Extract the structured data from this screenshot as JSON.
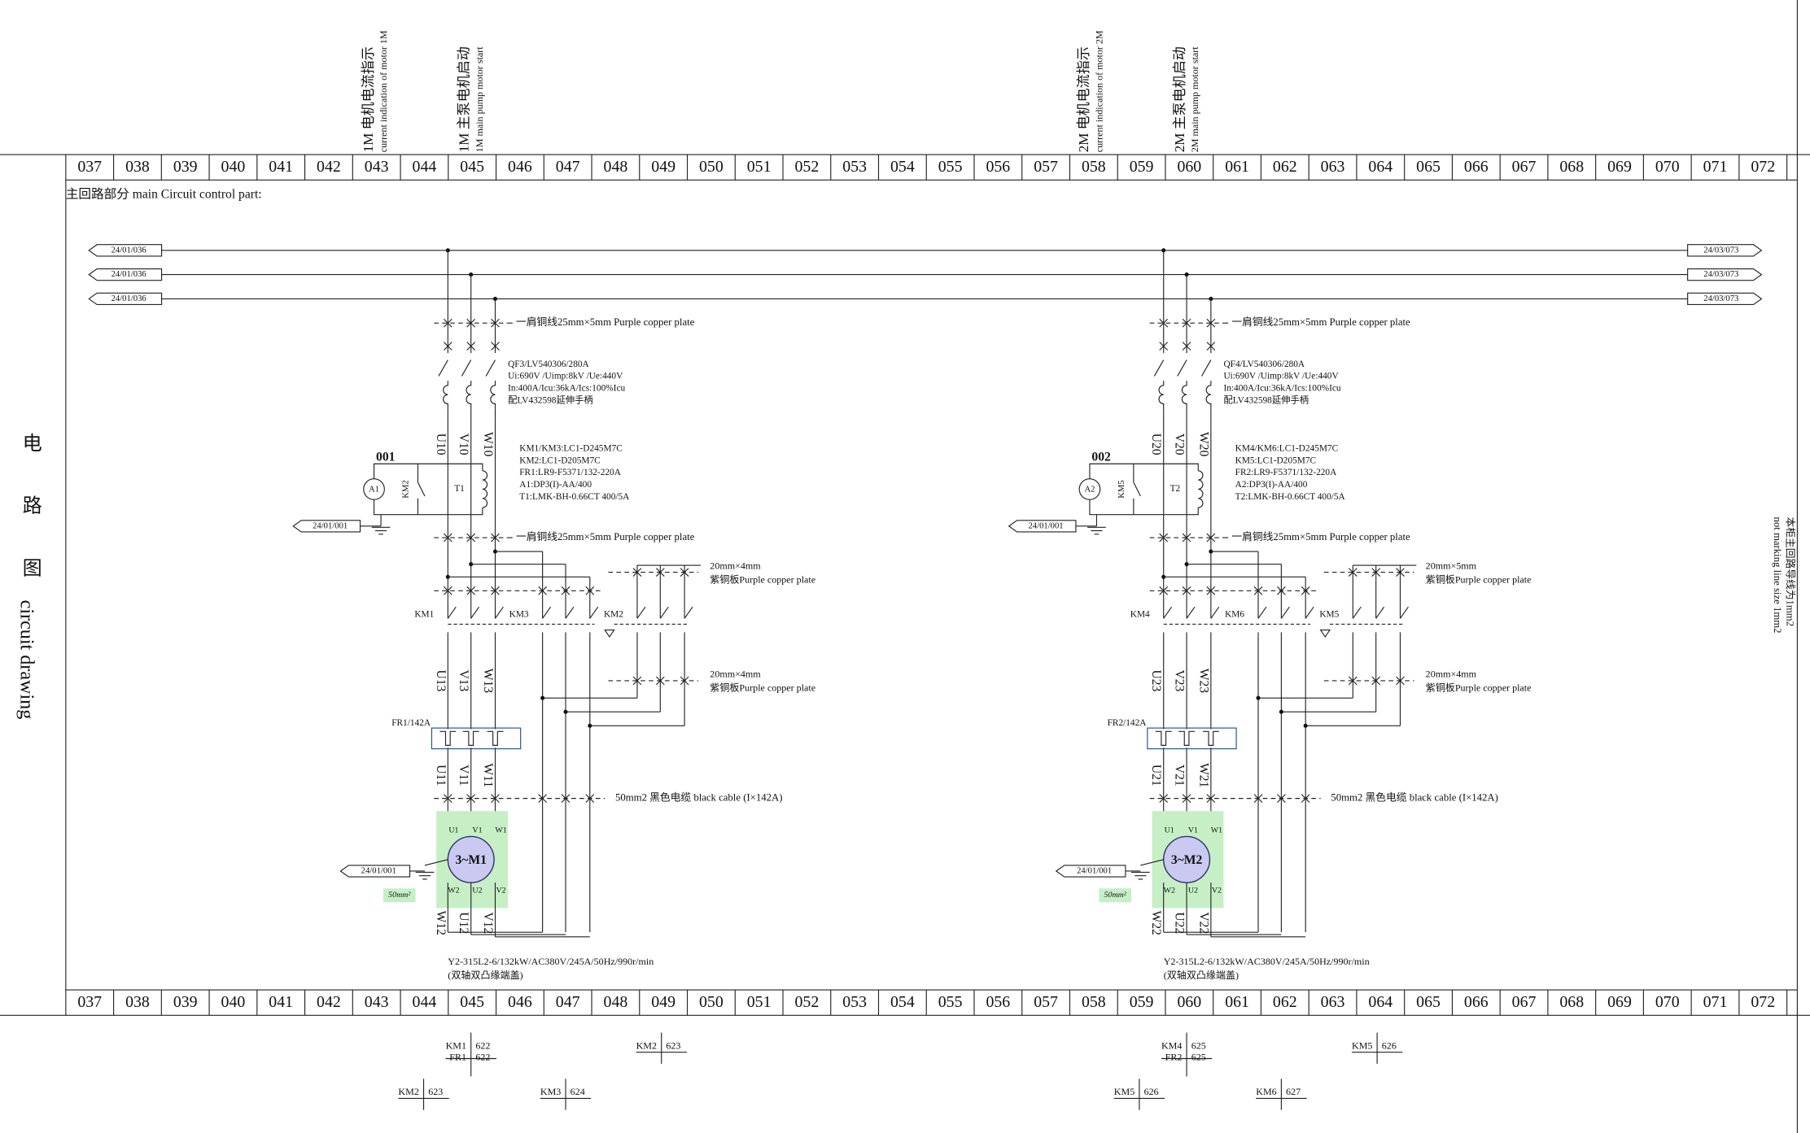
{
  "header": {
    "columns": [
      "037",
      "038",
      "039",
      "040",
      "041",
      "042",
      "043",
      "044",
      "045",
      "046",
      "047",
      "048",
      "049",
      "050",
      "051",
      "052",
      "053",
      "054",
      "055",
      "056",
      "057",
      "058",
      "059",
      "060",
      "061",
      "062",
      "063",
      "064",
      "065",
      "066",
      "067",
      "068",
      "069",
      "070",
      "071",
      "072"
    ]
  },
  "section_title": "主回路部分 main Circuit control part:",
  "side_label": {
    "cn": [
      "电",
      "路",
      "图"
    ],
    "en": "circuit drawing"
  },
  "side_note": [
    "本柜主回路导线为1mm2",
    "not marking line size 1mm2"
  ],
  "bus_refs": {
    "left": [
      "24/01/036",
      "24/01/036",
      "24/01/036"
    ],
    "right": [
      "24/03/073",
      "24/03/073",
      "24/03/073"
    ]
  },
  "circuits": [
    {
      "current_title": {
        "cn": "1M 电机电流指示",
        "en": "current indication of motor 1M"
      },
      "start_title": {
        "cn": "1M 主泵电机启动",
        "en": "1M main pump motor start"
      },
      "copper_top": "一肩铜线25mm×5mm Purple copper plate",
      "breaker": [
        "QF3/LV540306/280A",
        "Ui:690V /Uimp:8kV /Ue:440V",
        "In:400A/Icu:36kA/Ics:100%Icu",
        "配LV432598延伸手柄"
      ],
      "wires_in": [
        "U10",
        "V10",
        "W10"
      ],
      "meter": {
        "id": "001",
        "ammeter": "A1",
        "contact": "KM2",
        "ct": "T1",
        "ref": "24/01/001"
      },
      "notes": [
        "KM1/KM3:LC1-D245M7C",
        "KM2:LC1-D205M7C",
        "FR1:LR9-F5371/132-220A",
        "A1:DP3(I)-AA/400",
        "T1:LMK-BH-0.66CT  400/5A"
      ],
      "copper_mid": "一肩铜线25mm×5mm Purple copper plate",
      "plate_upper": [
        "20mm×4mm",
        "紫铜板Purple copper plate"
      ],
      "plate_lower": [
        "20mm×4mm",
        "紫铜板Purple copper plate"
      ],
      "contactors": [
        "KM1",
        "KM3",
        "KM2"
      ],
      "wires_mid": [
        "U13",
        "V13",
        "W13"
      ],
      "overload": "FR1/142A",
      "wires_out": [
        "U11",
        "V11",
        "W11"
      ],
      "cable": "50mm2 黑色电缆 black cable (I×142A)",
      "motor": {
        "name": "3~M1",
        "terminals_top": [
          "U1",
          "V1",
          "W1"
        ],
        "terminals_bottom": [
          "W2",
          "U2",
          "V2"
        ],
        "ref": "24/01/001",
        "ground_size": "50mm²"
      },
      "wires_end": [
        "W12",
        "U12",
        "V12"
      ],
      "motor_spec": [
        "Y2-315L2-6/132kW/AC380V/245A/50Hz/990r/min",
        "(双轴双凸缘端盖)"
      ],
      "cross_refs": [
        {
          "labels": [
            "KM1",
            "FR1"
          ],
          "refs": [
            "622",
            "622"
          ]
        },
        {
          "labels": [
            "KM2"
          ],
          "refs": [
            "623"
          ]
        },
        {
          "labels": [
            "KM2"
          ],
          "refs": [
            "623"
          ]
        },
        {
          "labels": [
            "KM3"
          ],
          "refs": [
            "624"
          ]
        }
      ]
    },
    {
      "current_title": {
        "cn": "2M 电机电流指示",
        "en": "current indication of motor 2M"
      },
      "start_title": {
        "cn": "2M 主泵电机启动",
        "en": "2M main pump motor start"
      },
      "copper_top": "一肩铜线25mm×5mm Purple copper plate",
      "breaker": [
        "QF4/LV540306/280A",
        "Ui:690V /Uimp:8kV /Ue:440V",
        "In:400A/Icu:36kA/Ics:100%Icu",
        "配LV432598延伸手柄"
      ],
      "wires_in": [
        "U20",
        "V20",
        "W20"
      ],
      "meter": {
        "id": "002",
        "ammeter": "A2",
        "contact": "KM5",
        "ct": "T2",
        "ref": "24/01/001"
      },
      "notes": [
        "KM4/KM6:LC1-D245M7C",
        "KM5:LC1-D205M7C",
        "FR2:LR9-F5371/132-220A",
        "A2:DP3(I)-AA/400",
        "T2:LMK-BH-0.66CT  400/5A"
      ],
      "copper_mid": "一肩铜线25mm×5mm Purple copper plate",
      "plate_upper": [
        "20mm×5mm",
        "紫铜板Purple copper plate"
      ],
      "plate_lower": [
        "20mm×4mm",
        "紫铜板Purple copper plate"
      ],
      "contactors": [
        "KM4",
        "KM6",
        "KM5"
      ],
      "wires_mid": [
        "U23",
        "V23",
        "W23"
      ],
      "overload": "FR2/142A",
      "wires_out": [
        "U21",
        "V21",
        "W21"
      ],
      "cable": "50mm2 黑色电缆 black cable (I×142A)",
      "motor": {
        "name": "3~M2",
        "terminals_top": [
          "U1",
          "V1",
          "W1"
        ],
        "terminals_bottom": [
          "W2",
          "U2",
          "V2"
        ],
        "ref": "24/01/001",
        "ground_size": "50mm²"
      },
      "wires_end": [
        "W22",
        "U22",
        "V22"
      ],
      "motor_spec": [
        "Y2-315L2-6/132kW/AC380V/245A/50Hz/990r/min",
        "(双轴双凸缘端盖)"
      ],
      "cross_refs": [
        {
          "labels": [
            "KM4",
            "FR2"
          ],
          "refs": [
            "625",
            "625"
          ]
        },
        {
          "labels": [
            "KM5"
          ],
          "refs": [
            "626"
          ]
        },
        {
          "labels": [
            "KM5"
          ],
          "refs": [
            "626"
          ]
        },
        {
          "labels": [
            "KM6"
          ],
          "refs": [
            "627"
          ]
        }
      ]
    }
  ]
}
